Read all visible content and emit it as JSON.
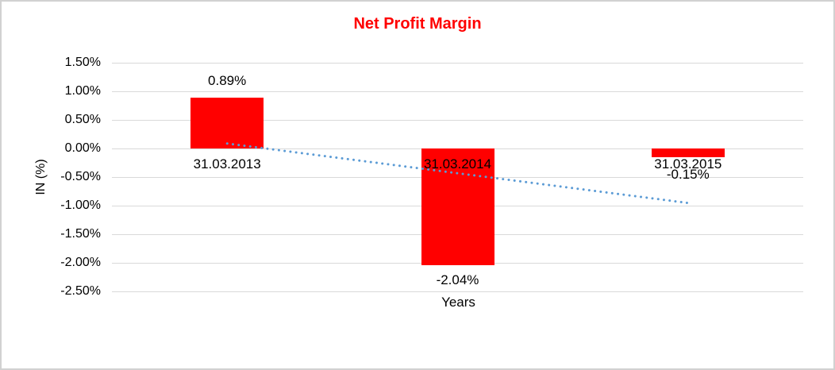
{
  "chart_data": {
    "type": "bar",
    "title": "Net Profit Margin",
    "categories": [
      "31.03.2013",
      "31.03.2014",
      "31.03.2015"
    ],
    "values": [
      0.89,
      -2.04,
      -0.15
    ],
    "data_labels": [
      "0.89%",
      "-2.04%",
      "-0.15%"
    ],
    "xlabel": "Years",
    "ylabel": "IN (%)",
    "ylim": [
      -2.5,
      1.5
    ],
    "ytick_step": 0.5,
    "ytick_labels": [
      "1.50%",
      "1.00%",
      "0.50%",
      "0.00%",
      "-0.50%",
      "-1.00%",
      "-1.50%",
      "-2.00%",
      "-2.50%"
    ],
    "grid": true,
    "legend": "none",
    "trendline": {
      "type": "linear",
      "style": "dotted",
      "color": "#5B9BD5"
    },
    "colors": {
      "bar": "#FF0000",
      "title": "#FF0000",
      "gridline": "#D9D9D9",
      "text": "#000000",
      "frame": "#D1D1D1"
    }
  }
}
